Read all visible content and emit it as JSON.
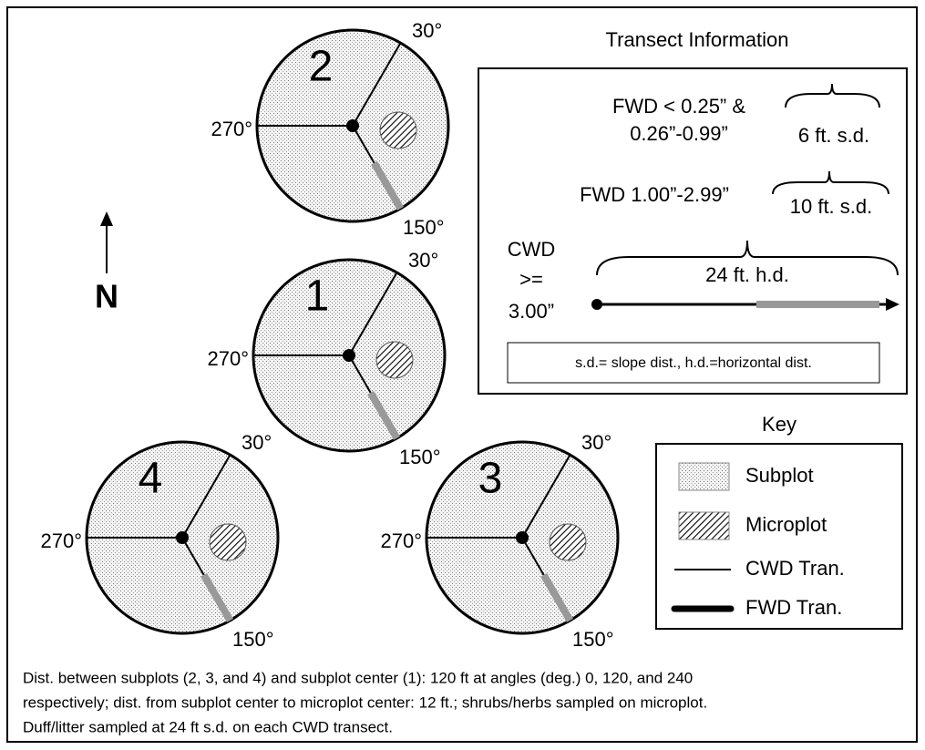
{
  "title": "Transect Information",
  "north": "N",
  "subplots": [
    {
      "label": "2",
      "angles": [
        "30°",
        "270°",
        "150°"
      ]
    },
    {
      "label": "1",
      "angles": [
        "30°",
        "270°",
        "150°"
      ]
    },
    {
      "label": "4",
      "angles": [
        "30°",
        "270°",
        "150°"
      ]
    },
    {
      "label": "3",
      "angles": [
        "30°",
        "270°",
        "150°"
      ]
    }
  ],
  "transect_info": {
    "fwd_small": [
      "FWD < 0.25” &",
      "0.26”-0.99”"
    ],
    "fwd_small_length": "6 ft. s.d.",
    "fwd_medium": "FWD 1.00”-2.99”",
    "fwd_medium_length": "10 ft. s.d.",
    "cwd": [
      "CWD",
      ">=",
      "3.00”"
    ],
    "cwd_length": "24 ft. h.d.",
    "abbreviations": "s.d.= slope dist., h.d.=horizontal dist."
  },
  "key": {
    "title": "Key",
    "items": [
      "Subplot",
      "Microplot",
      "CWD Tran.",
      "FWD Tran."
    ]
  },
  "footnote": [
    "Dist. between subplots (2, 3, and 4) and subplot center (1): 120 ft at angles (deg.) 0, 120, and 240",
    "respectively; dist. from subplot center to microplot center: 12 ft.; shrubs/herbs sampled on microplot.",
    "Duff/litter sampled at 24 ft s.d. on each CWD transect."
  ]
}
